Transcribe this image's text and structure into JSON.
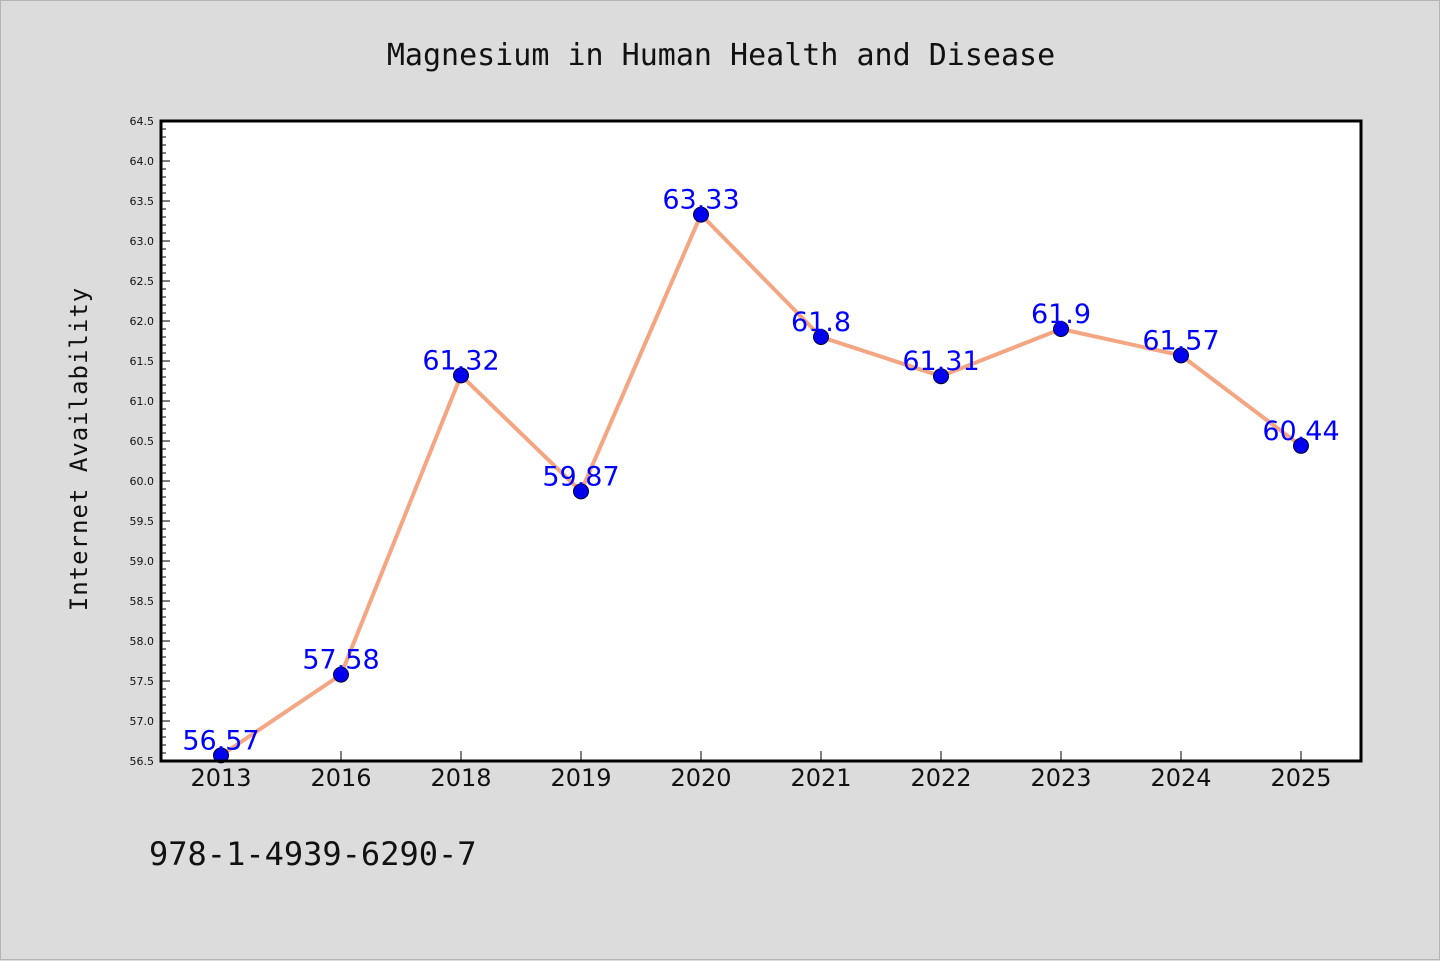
{
  "colors": {
    "background": "#dcdcdc",
    "plot_background": "#ffffff",
    "line": "#f4a582",
    "marker": "#0000ee",
    "label": "#0000ff"
  },
  "footer": {
    "isbn": "978-1-4939-6290-7"
  },
  "chart_data": {
    "type": "line",
    "title": "Magnesium in Human Health and Disease",
    "xlabel": "",
    "ylabel": "Internet Availability",
    "categories": [
      "2013",
      "2016",
      "2018",
      "2019",
      "2020",
      "2021",
      "2022",
      "2023",
      "2024",
      "2025"
    ],
    "series": [
      {
        "values": [
          56.57,
          57.58,
          61.32,
          59.87,
          63.33,
          61.8,
          61.31,
          61.9,
          61.57,
          60.44
        ],
        "labels": [
          "56.57",
          "57.58",
          "61.32",
          "59.87",
          "63.33",
          "61.8",
          "61.31",
          "61.9",
          "61.57",
          "60.44"
        ]
      }
    ],
    "ylim": [
      56.5,
      64.5
    ],
    "yticks": [
      "56.5",
      "57.0",
      "57.5",
      "58.0",
      "58.5",
      "59.0",
      "59.5",
      "60.0",
      "60.5",
      "61.0",
      "61.5",
      "62.0",
      "62.5",
      "63.0",
      "63.5",
      "64.0",
      "64.5"
    ],
    "grid": false,
    "legend": "none"
  }
}
